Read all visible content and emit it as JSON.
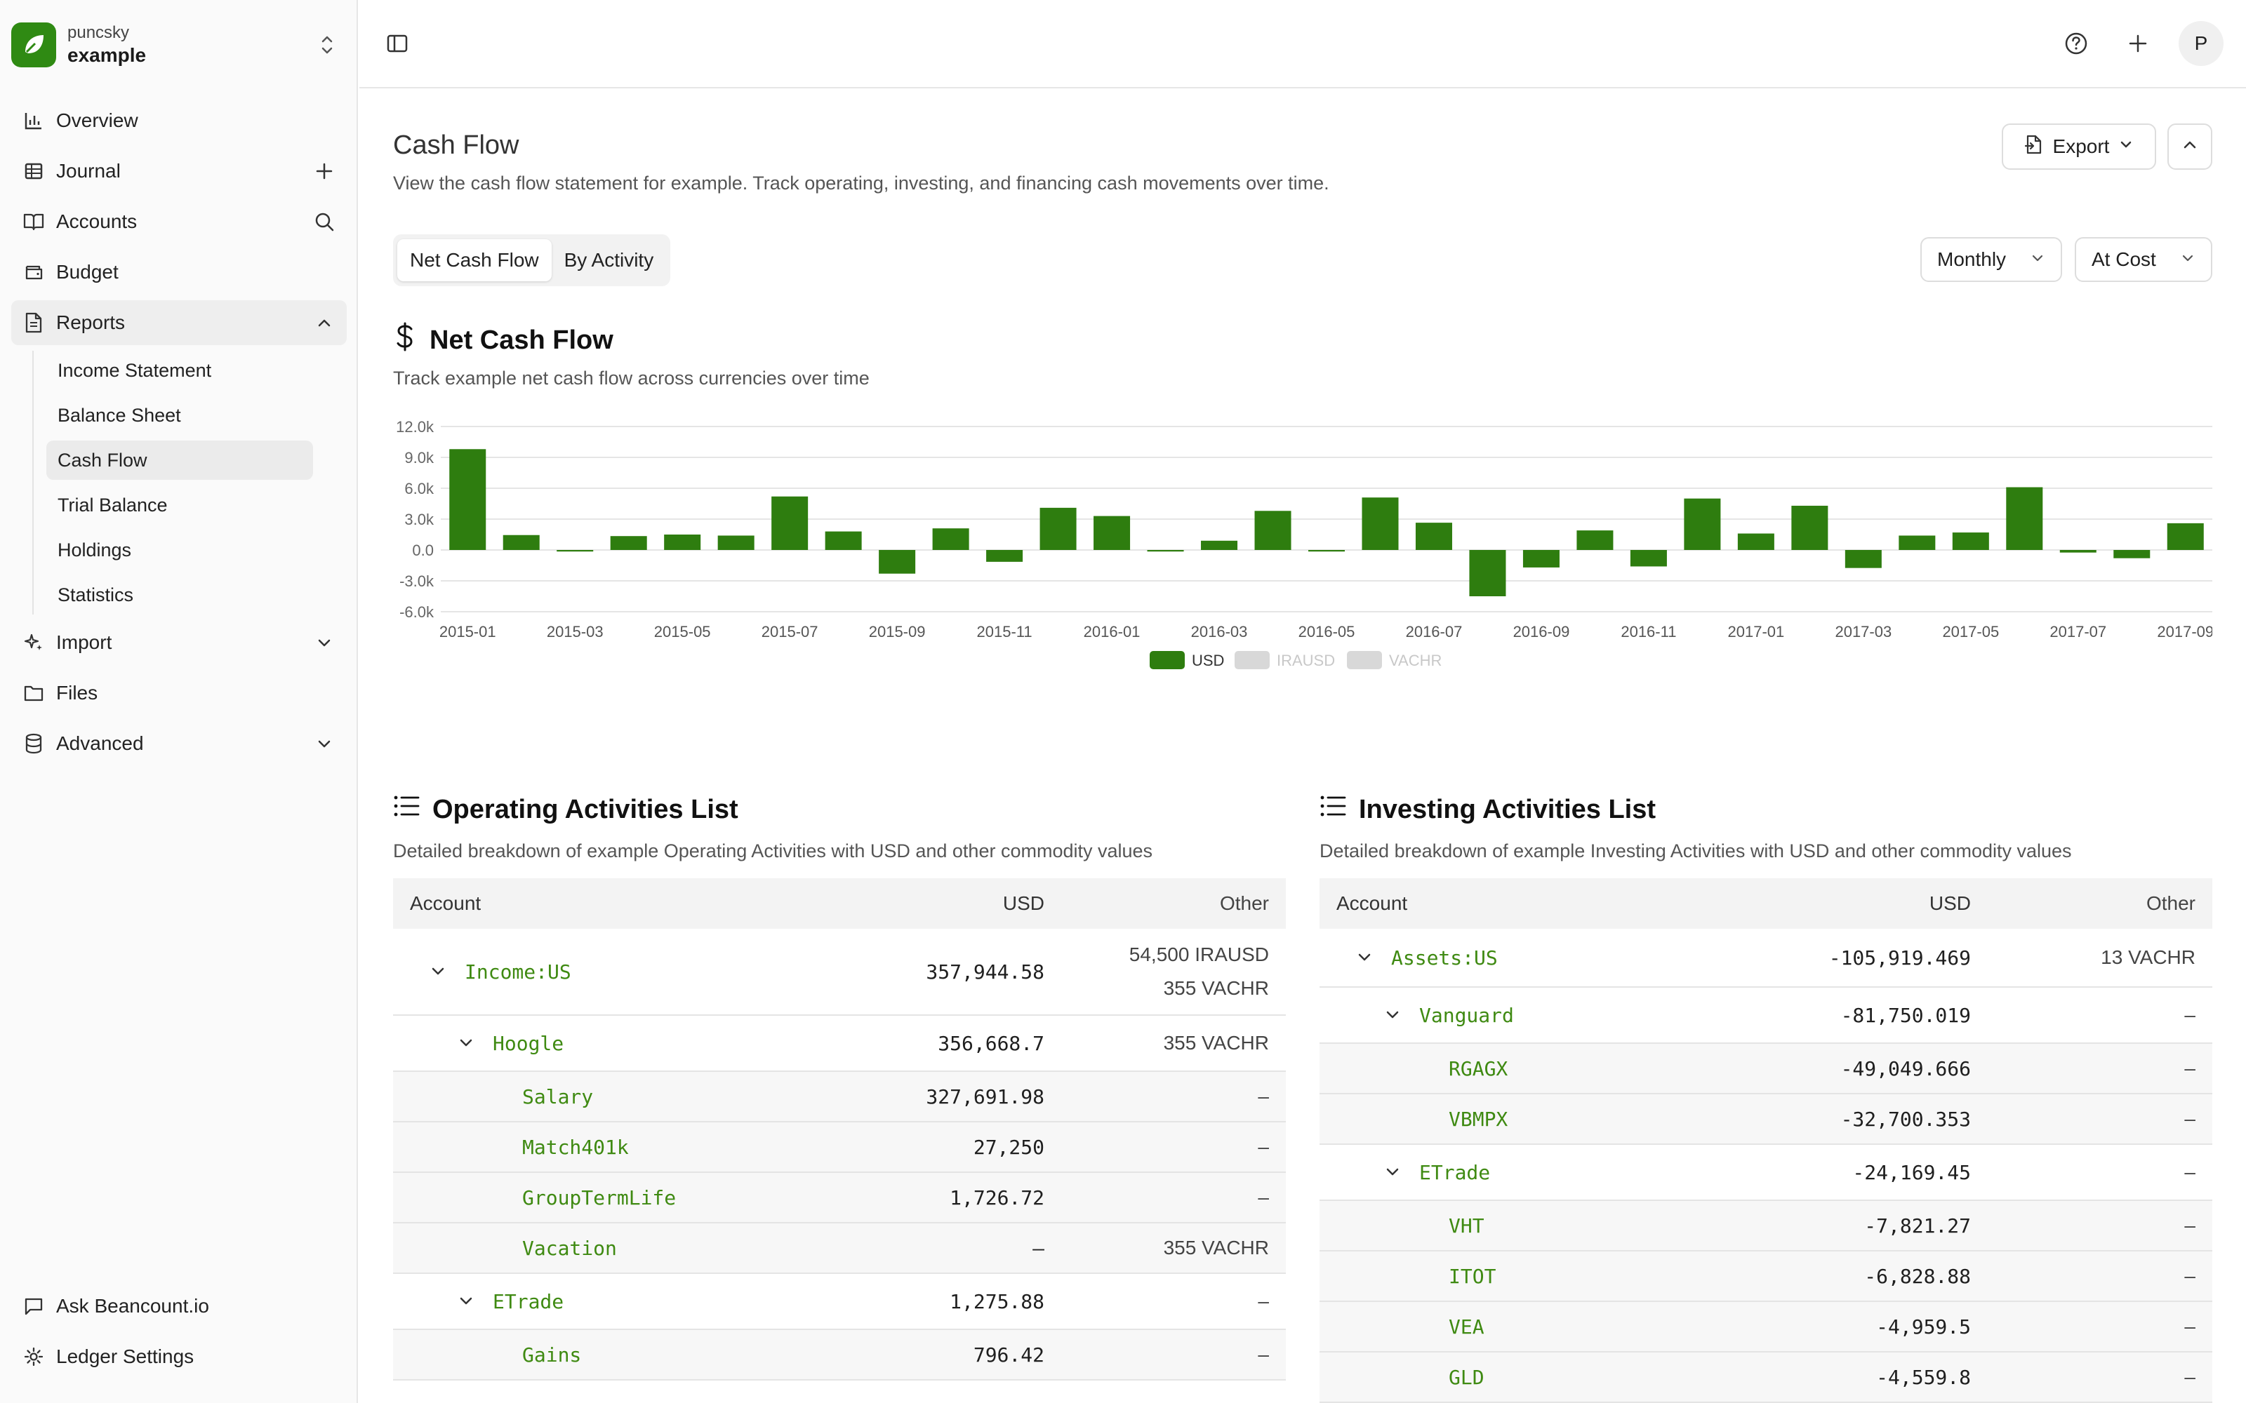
{
  "sidebar": {
    "owner": "puncsky",
    "ledger": "example",
    "nav": {
      "overview": "Overview",
      "journal": "Journal",
      "accounts": "Accounts",
      "budget": "Budget",
      "reports": "Reports",
      "import": "Import",
      "files": "Files",
      "advanced": "Advanced"
    },
    "reports_sub": [
      "Income Statement",
      "Balance Sheet",
      "Cash Flow",
      "Trial Balance",
      "Holdings",
      "Statistics"
    ],
    "bottom": {
      "ask": "Ask Beancount.io",
      "settings": "Ledger Settings"
    }
  },
  "topbar": {
    "avatar": "P"
  },
  "page": {
    "title": "Cash Flow",
    "description": "View the cash flow statement for example. Track operating, investing, and financing cash movements over time.",
    "export_label": "Export",
    "tabs": [
      "Net Cash Flow",
      "By Activity"
    ],
    "period_select": "Monthly",
    "valuation_select": "At Cost"
  },
  "net_cash_flow": {
    "title": "Net Cash Flow",
    "description": "Track example net cash flow across currencies over time"
  },
  "chart_data": {
    "type": "bar",
    "x_tick_labels": [
      "2015-01",
      "2015-03",
      "2015-05",
      "2015-07",
      "2015-09",
      "2015-11",
      "2016-01",
      "2016-03",
      "2016-05",
      "2016-07",
      "2016-09",
      "2016-11",
      "2017-01",
      "2017-03",
      "2017-05",
      "2017-07",
      "2017-09"
    ],
    "y_tick_labels": [
      "12.0k",
      "9.0k",
      "6.0k",
      "3.0k",
      "0.0",
      "-3.0k",
      "-6.0k"
    ],
    "ylim": [
      -6000,
      12000
    ],
    "y_ticks": [
      12000,
      9000,
      6000,
      3000,
      0,
      -3000,
      -6000
    ],
    "categories": [
      "2015-01",
      "2015-02",
      "2015-03",
      "2015-04",
      "2015-05",
      "2015-06",
      "2015-07",
      "2015-08",
      "2015-09",
      "2015-10",
      "2015-11",
      "2015-12",
      "2016-01",
      "2016-02",
      "2016-03",
      "2016-04",
      "2016-05",
      "2016-06",
      "2016-07",
      "2016-08",
      "2016-09",
      "2016-10",
      "2016-11",
      "2016-12",
      "2017-01",
      "2017-02",
      "2017-03",
      "2017-04",
      "2017-05",
      "2017-06",
      "2017-07",
      "2017-08",
      "2017-09"
    ],
    "series": [
      {
        "name": "USD",
        "color": "#2e7d0f",
        "values": [
          9800,
          1450,
          -150,
          1350,
          1500,
          1400,
          5200,
          1800,
          -2300,
          2100,
          -1150,
          4100,
          3300,
          -150,
          900,
          3800,
          -150,
          5100,
          2650,
          -4500,
          -1700,
          1900,
          -1600,
          5000,
          1600,
          4300,
          -1750,
          1400,
          1700,
          6100,
          -250,
          -800,
          2600
        ]
      }
    ],
    "legend": [
      {
        "name": "USD",
        "color": "#2e7d0f"
      },
      {
        "name": "IRAUSD",
        "color": "#d8d8d8"
      },
      {
        "name": "VACHR",
        "color": "#d8d8d8"
      }
    ],
    "legend_placement": "bottom",
    "grid": true
  },
  "operating": {
    "title": "Operating Activities List",
    "description": "Detailed breakdown of example Operating Activities with USD and other commodity values",
    "headers": {
      "account": "Account",
      "usd": "USD",
      "other": "Other"
    },
    "rows": [
      {
        "account": "Income:US",
        "usd": "357,944.58",
        "other1": "54,500 IRAUSD",
        "other2": "355 VACHR"
      },
      {
        "account": "Hoogle",
        "usd": "356,668.7",
        "other": "355 VACHR"
      },
      {
        "account": "Salary",
        "usd": "327,691.98",
        "other": "–"
      },
      {
        "account": "Match401k",
        "usd": "27,250",
        "other": "–"
      },
      {
        "account": "GroupTermLife",
        "usd": "1,726.72",
        "other": "–"
      },
      {
        "account": "Vacation",
        "usd": "–",
        "other": "355 VACHR"
      },
      {
        "account": "ETrade",
        "usd": "1,275.88",
        "other": "–"
      },
      {
        "account": "Gains",
        "usd": "796.42",
        "other": "–"
      }
    ]
  },
  "investing": {
    "title": "Investing Activities List",
    "description": "Detailed breakdown of example Investing Activities with USD and other commodity values",
    "headers": {
      "account": "Account",
      "usd": "USD",
      "other": "Other"
    },
    "rows": [
      {
        "account": "Assets:US",
        "usd": "-105,919.469",
        "other": "13 VACHR"
      },
      {
        "account": "Vanguard",
        "usd": "-81,750.019",
        "other": "–"
      },
      {
        "account": "RGAGX",
        "usd": "-49,049.666",
        "other": "–"
      },
      {
        "account": "VBMPX",
        "usd": "-32,700.353",
        "other": "–"
      },
      {
        "account": "ETrade",
        "usd": "-24,169.45",
        "other": "–"
      },
      {
        "account": "VHT",
        "usd": "-7,821.27",
        "other": "–"
      },
      {
        "account": "ITOT",
        "usd": "-6,828.88",
        "other": "–"
      },
      {
        "account": "VEA",
        "usd": "-4,959.5",
        "other": "–"
      },
      {
        "account": "GLD",
        "usd": "-4,559.8",
        "other": "–"
      }
    ]
  }
}
